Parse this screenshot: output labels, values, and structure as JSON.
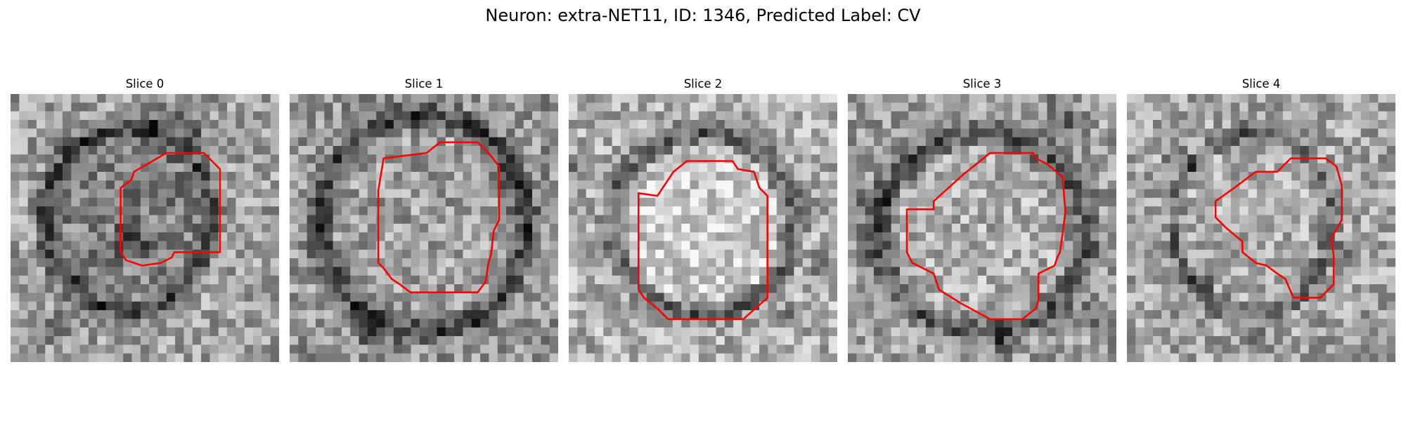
{
  "figure": {
    "title": "Neuron: extra-NET11, ID: 1346, Predicted Label: CV"
  },
  "panels": [
    {
      "title": "Slice 0"
    },
    {
      "title": "Slice 1"
    },
    {
      "title": "Slice 2"
    },
    {
      "title": "Slice 3"
    },
    {
      "title": "Slice 4"
    }
  ],
  "style": {
    "contour_color": "#ff0000",
    "colormap": "grayscale"
  }
}
